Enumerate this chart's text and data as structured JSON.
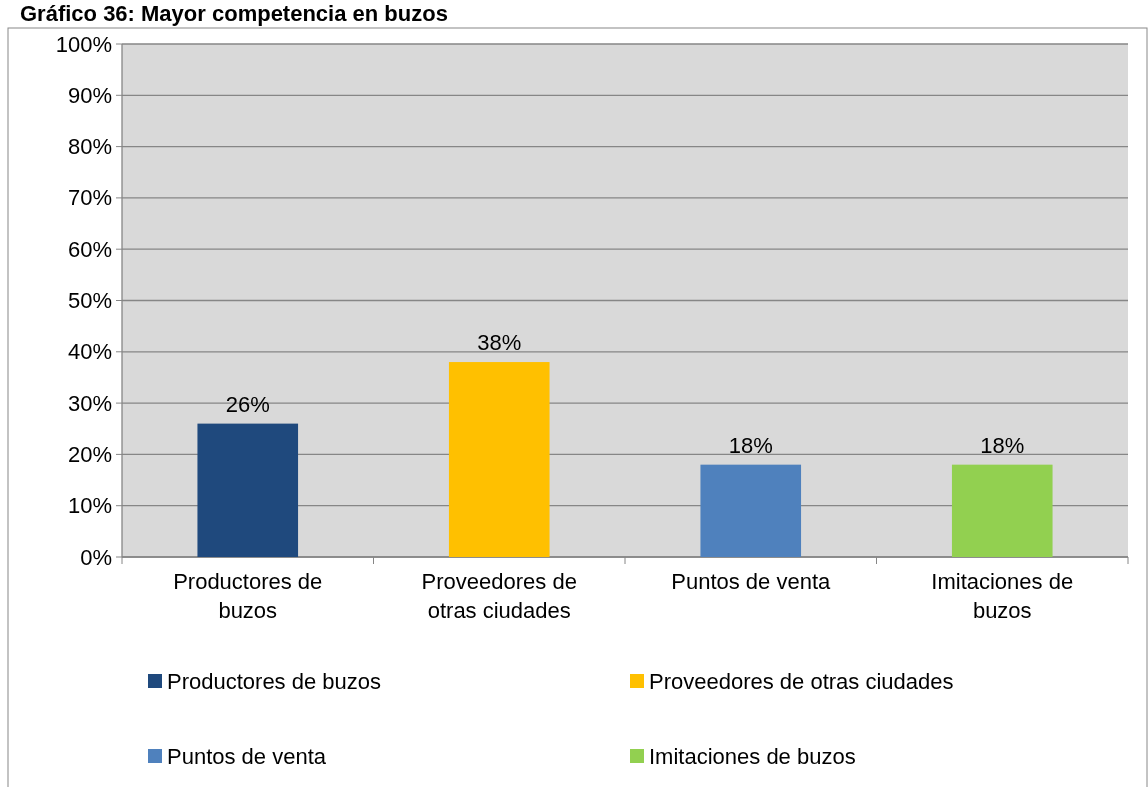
{
  "chart_data": {
    "type": "bar",
    "title": "Gráfico 36: Mayor competencia en buzos",
    "categories": [
      "Productores de buzos",
      "Proveedores de otras ciudades",
      "Puntos de venta",
      "Imitaciones de buzos"
    ],
    "stacked": true,
    "series": [
      {
        "name": "Productores de buzos",
        "color": "#1f497d",
        "values": [
          26,
          null,
          null,
          null
        ],
        "value_labels": [
          "26%",
          null,
          null,
          null
        ]
      },
      {
        "name": "Proveedores de otras ciudades",
        "color": "#ffc000",
        "values": [
          null,
          38,
          null,
          null
        ],
        "value_labels": [
          null,
          "38%",
          null,
          null
        ]
      },
      {
        "name": "Puntos de venta",
        "color": "#4f81bd",
        "values": [
          null,
          null,
          18,
          null
        ],
        "value_labels": [
          null,
          null,
          "18%",
          null
        ]
      },
      {
        "name": "Imitaciones de buzos",
        "color": "#92d050",
        "values": [
          null,
          null,
          null,
          18
        ],
        "value_labels": [
          null,
          null,
          null,
          "18%"
        ]
      }
    ],
    "ylim": [
      0,
      100
    ],
    "yticks": [
      {
        "value": 0,
        "label": "0%"
      },
      {
        "value": 10,
        "label": "10%"
      },
      {
        "value": 20,
        "label": "20%"
      },
      {
        "value": 30,
        "label": "30%"
      },
      {
        "value": 40,
        "label": "40%"
      },
      {
        "value": 50,
        "label": "50%"
      },
      {
        "value": 60,
        "label": "60%"
      },
      {
        "value": 70,
        "label": "70%"
      },
      {
        "value": 80,
        "label": "80%"
      },
      {
        "value": 90,
        "label": "90%"
      },
      {
        "value": 100,
        "label": "100%"
      }
    ],
    "grid": "y",
    "legend": "bottom"
  }
}
